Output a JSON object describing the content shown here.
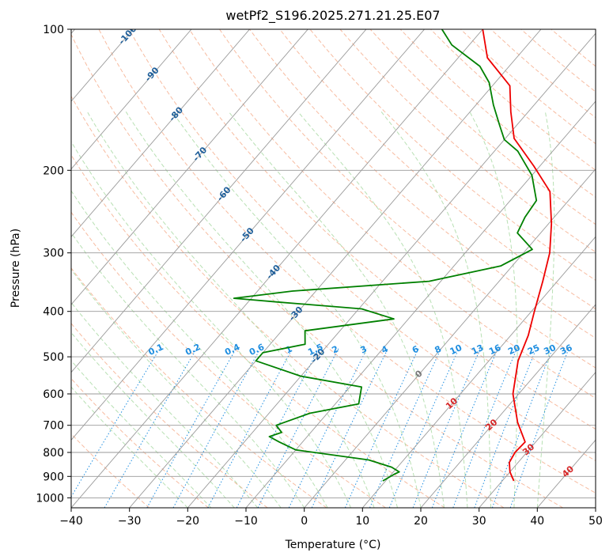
{
  "chart_data": {
    "type": "line",
    "title": "wetPf2_S196.2025.271.21.25.E07",
    "xlabel": "Temperature (°C)",
    "ylabel": "Pressure (hPa)",
    "xlim": [
      -40,
      50
    ],
    "ylim": [
      1050,
      100
    ],
    "yscale": "log",
    "grid": true,
    "x_ticks": [
      -40,
      -30,
      -20,
      -10,
      0,
      10,
      20,
      30,
      40,
      50
    ],
    "y_ticks": [
      100,
      200,
      300,
      400,
      500,
      600,
      700,
      800,
      900,
      1000
    ],
    "skew_isotherm_labels": [
      -100,
      -90,
      -80,
      -70,
      -60,
      -50,
      -40,
      -30,
      -20,
      -10
    ],
    "dry_adiabat_labels": [
      0,
      10,
      20,
      30,
      40
    ],
    "mixing_ratio_labels": [
      "0.1",
      "0.2",
      "0.4",
      "0.6",
      "1",
      "1.5",
      "2",
      "3",
      "4",
      "6",
      "8",
      "10",
      "13",
      "16",
      "20",
      "25",
      "30",
      "36"
    ],
    "series": [
      {
        "color": "#ee0000",
        "points": [
          [
            32.0,
            920
          ],
          [
            30.0,
            880
          ],
          [
            28.5,
            840
          ],
          [
            28.0,
            800
          ],
          [
            28.2,
            760
          ],
          [
            24.0,
            690
          ],
          [
            19.0,
            600
          ],
          [
            15.0,
            510
          ],
          [
            13.0,
            450
          ],
          [
            10.5,
            400
          ],
          [
            7.5,
            345
          ],
          [
            4.5,
            300
          ],
          [
            0.5,
            260
          ],
          [
            -4.5,
            222
          ],
          [
            -11.0,
            196
          ],
          [
            -18.5,
            171
          ],
          [
            -23.0,
            150
          ],
          [
            -27.0,
            132
          ],
          [
            -35.0,
            115
          ],
          [
            -40.0,
            100
          ]
        ]
      },
      {
        "color": "#008000",
        "points": [
          [
            9.5,
            920
          ],
          [
            10.5,
            890
          ],
          [
            11.0,
            880
          ],
          [
            9.0,
            860
          ],
          [
            4.0,
            830
          ],
          [
            -10.0,
            790
          ],
          [
            -14.0,
            760
          ],
          [
            -16.5,
            740
          ],
          [
            -15.0,
            725
          ],
          [
            -17.0,
            700
          ],
          [
            -13.0,
            660
          ],
          [
            -6.0,
            630
          ],
          [
            -8.0,
            580
          ],
          [
            -20.0,
            550
          ],
          [
            -30.0,
            510
          ],
          [
            -30.0,
            490
          ],
          [
            -24.0,
            470
          ],
          [
            -26.0,
            440
          ],
          [
            -12.5,
            415
          ],
          [
            -19.5,
            395
          ],
          [
            -35.0,
            382
          ],
          [
            -43.0,
            375
          ],
          [
            -34.0,
            362
          ],
          [
            -12.0,
            345
          ],
          [
            -2.0,
            320
          ],
          [
            1.0,
            295
          ],
          [
            -4.0,
            272
          ],
          [
            -5.0,
            252
          ],
          [
            -5.5,
            232
          ],
          [
            -10.0,
            205
          ],
          [
            -16.0,
            182
          ],
          [
            -20.0,
            172
          ],
          [
            -23.0,
            160
          ],
          [
            -27.0,
            145
          ],
          [
            -31.0,
            130
          ],
          [
            -35.0,
            120
          ],
          [
            -43.0,
            108
          ],
          [
            -47.0,
            100
          ]
        ]
      }
    ]
  }
}
